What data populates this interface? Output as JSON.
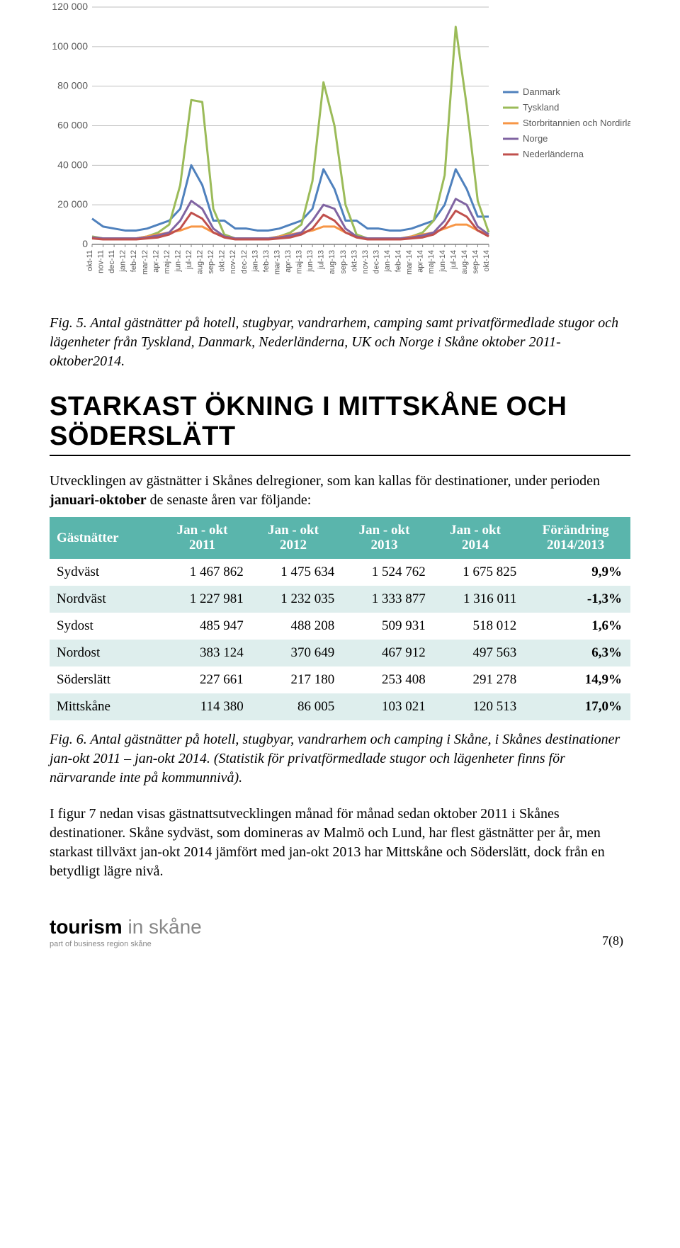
{
  "chart": {
    "type": "line",
    "background_color": "#ffffff",
    "grid_color": "#bfbfbf",
    "axis_color": "#808080",
    "ytick_labels": [
      "0",
      "20 000",
      "40 000",
      "60 000",
      "80 000",
      "100 000",
      "120 000"
    ],
    "ytick_values": [
      0,
      20000,
      40000,
      60000,
      80000,
      100000,
      120000
    ],
    "ylim": [
      0,
      120000
    ],
    "ytick_fontsize": 14,
    "ytick_color": "#595959",
    "xtick_labels": [
      "okt-11",
      "nov-11",
      "dec-11",
      "jan-12",
      "feb-12",
      "mar-12",
      "apr-12",
      "maj-12",
      "jun-12",
      "jul-12",
      "aug-12",
      "sep-12",
      "okt-12",
      "nov-12",
      "dec-12",
      "jan-13",
      "feb-13",
      "mar-13",
      "apr-13",
      "maj-13",
      "jun-13",
      "jul-13",
      "aug-13",
      "sep-13",
      "okt-13",
      "nov-13",
      "dec-13",
      "jan-14",
      "feb-14",
      "mar-14",
      "apr-14",
      "maj-14",
      "jun-14",
      "jul-14",
      "aug-14",
      "sep-14",
      "okt-14"
    ],
    "xtick_fontsize": 11,
    "xtick_color": "#595959",
    "line_width": 3,
    "legend": {
      "position": "right",
      "fontsize": 13,
      "items": [
        {
          "label": "Danmark",
          "color": "#4f81bd"
        },
        {
          "label": "Tyskland",
          "color": "#9bbb59"
        },
        {
          "label": "Storbritannien och Nordirland",
          "color": "#f79646"
        },
        {
          "label": "Norge",
          "color": "#8064a2"
        },
        {
          "label": "Nederländerna",
          "color": "#c0504d"
        }
      ]
    },
    "series": [
      {
        "name": "Danmark",
        "color": "#4f81bd",
        "values": [
          13000,
          9000,
          8000,
          7000,
          7000,
          8000,
          10000,
          12000,
          18000,
          40000,
          30000,
          12000,
          12000,
          8000,
          8000,
          7000,
          7000,
          8000,
          10000,
          12000,
          18000,
          38000,
          28000,
          12000,
          12000,
          8000,
          8000,
          7000,
          7000,
          8000,
          10000,
          12000,
          20000,
          38000,
          28000,
          14000,
          14000
        ]
      },
      {
        "name": "Tyskland",
        "color": "#9bbb59",
        "values": [
          4000,
          3000,
          3000,
          3000,
          3000,
          4000,
          6000,
          10000,
          30000,
          73000,
          72000,
          18000,
          5000,
          3000,
          3000,
          3000,
          3000,
          4000,
          6000,
          10000,
          32000,
          82000,
          60000,
          20000,
          5000,
          3000,
          3000,
          3000,
          3000,
          4000,
          6000,
          12000,
          35000,
          110000,
          70000,
          22000,
          6000
        ]
      },
      {
        "name": "Storbritannien och Nordirland",
        "color": "#f79646",
        "values": [
          3500,
          3000,
          3000,
          3000,
          3000,
          4000,
          5000,
          6000,
          7000,
          9000,
          9000,
          6000,
          4000,
          3000,
          3000,
          3000,
          3000,
          4000,
          5000,
          6000,
          7000,
          9000,
          9000,
          6000,
          4000,
          3000,
          3000,
          3000,
          3000,
          4000,
          5000,
          6000,
          8000,
          10000,
          10000,
          7000,
          5000
        ]
      },
      {
        "name": "Norge",
        "color": "#8064a2",
        "values": [
          3500,
          3000,
          3000,
          3000,
          3000,
          3500,
          4500,
          6000,
          12000,
          22000,
          18000,
          8000,
          4000,
          3000,
          3000,
          3000,
          3000,
          3500,
          4500,
          6000,
          12000,
          20000,
          18000,
          8000,
          4000,
          3000,
          3000,
          3000,
          3000,
          3500,
          4500,
          6000,
          12000,
          23000,
          20000,
          9000,
          5000
        ]
      },
      {
        "name": "Nederländerna",
        "color": "#c0504d",
        "values": [
          3000,
          2500,
          2500,
          2500,
          2500,
          3000,
          3500,
          5000,
          8000,
          16000,
          13000,
          6000,
          3500,
          2500,
          2500,
          2500,
          2500,
          3000,
          3500,
          5000,
          8000,
          15000,
          12000,
          6000,
          3500,
          2500,
          2500,
          2500,
          2500,
          3000,
          3500,
          5000,
          9000,
          17000,
          14000,
          7000,
          4000
        ]
      }
    ]
  },
  "fig5_caption": "Fig. 5. Antal gästnätter på hotell, stugbyar, vandrarhem, camping samt privatförmedlade stugor och lägenheter från Tyskland, Danmark, Nederländerna, UK och Norge i Skåne oktober 2011-oktober2014.",
  "section_title": "STARKAST ÖKNING I MITTSKÅNE OCH SÖDERSLÄTT",
  "intro_text_1": "Utvecklingen av gästnätter i Skånes delregioner, som kan kallas för destinationer, under perioden ",
  "intro_bold": "januari-oktober",
  "intro_text_2": " de senaste åren var följande:",
  "table": {
    "header_bg": "#5ab5ac",
    "row_alt_bg": "#deeeed",
    "row_bg": "#ffffff",
    "columns": [
      "Gästnätter",
      "Jan - okt 2011",
      "Jan - okt 2012",
      "Jan - okt 2013",
      "Jan - okt 2014",
      "Förändring 2014/2013"
    ],
    "col0": "Gästnätter",
    "col1a": "Jan - okt",
    "col1b": "2011",
    "col2a": "Jan - okt",
    "col2b": "2012",
    "col3a": "Jan - okt",
    "col3b": "2013",
    "col4a": "Jan - okt",
    "col4b": "2014",
    "col5a": "Förändring",
    "col5b": "2014/2013",
    "rows": [
      {
        "name": "Sydväst",
        "c1": "1 467 862",
        "c2": "1 475 634",
        "c3": "1 524 762",
        "c4": "1 675 825",
        "c5": "9,9%",
        "alt": false
      },
      {
        "name": "Nordväst",
        "c1": "1 227 981",
        "c2": "1 232 035",
        "c3": "1 333 877",
        "c4": "1 316 011",
        "c5": "-1,3%",
        "alt": true
      },
      {
        "name": "Sydost",
        "c1": "485 947",
        "c2": "488 208",
        "c3": "509 931",
        "c4": "518 012",
        "c5": "1,6%",
        "alt": false
      },
      {
        "name": "Nordost",
        "c1": "383 124",
        "c2": "370 649",
        "c3": "467 912",
        "c4": "497 563",
        "c5": "6,3%",
        "alt": true
      },
      {
        "name": "Söderslätt",
        "c1": "227 661",
        "c2": "217 180",
        "c3": "253 408",
        "c4": "291 278",
        "c5": "14,9%",
        "alt": false
      },
      {
        "name": "Mittskåne",
        "c1": "114 380",
        "c2": "86 005",
        "c3": "103 021",
        "c4": "120 513",
        "c5": "17,0%",
        "alt": true
      }
    ]
  },
  "fig6_caption": "Fig. 6. Antal gästnätter på hotell, stugbyar, vandrarhem och camping i Skåne, i Skånes destinationer jan-okt 2011 – jan-okt 2014. (Statistik för privatförmedlade stugor och lägenheter finns för närvarande inte på kommunnivå).",
  "body_paragraph": "I figur 7 nedan visas gästnattsutvecklingen månad för månad sedan oktober 2011 i Skånes destinationer. Skåne sydväst, som domineras av Malmö och Lund, har flest gästnätter per år, men starkast tillväxt jan-okt 2014 jämfört med jan-okt 2013 har Mittskåne och Söderslätt, dock från en betydligt lägre nivå.",
  "footer": {
    "logo_bold": "tourism",
    "logo_light": " in skåne",
    "logo_sub": "part of business region skåne",
    "page": "7(8)"
  }
}
